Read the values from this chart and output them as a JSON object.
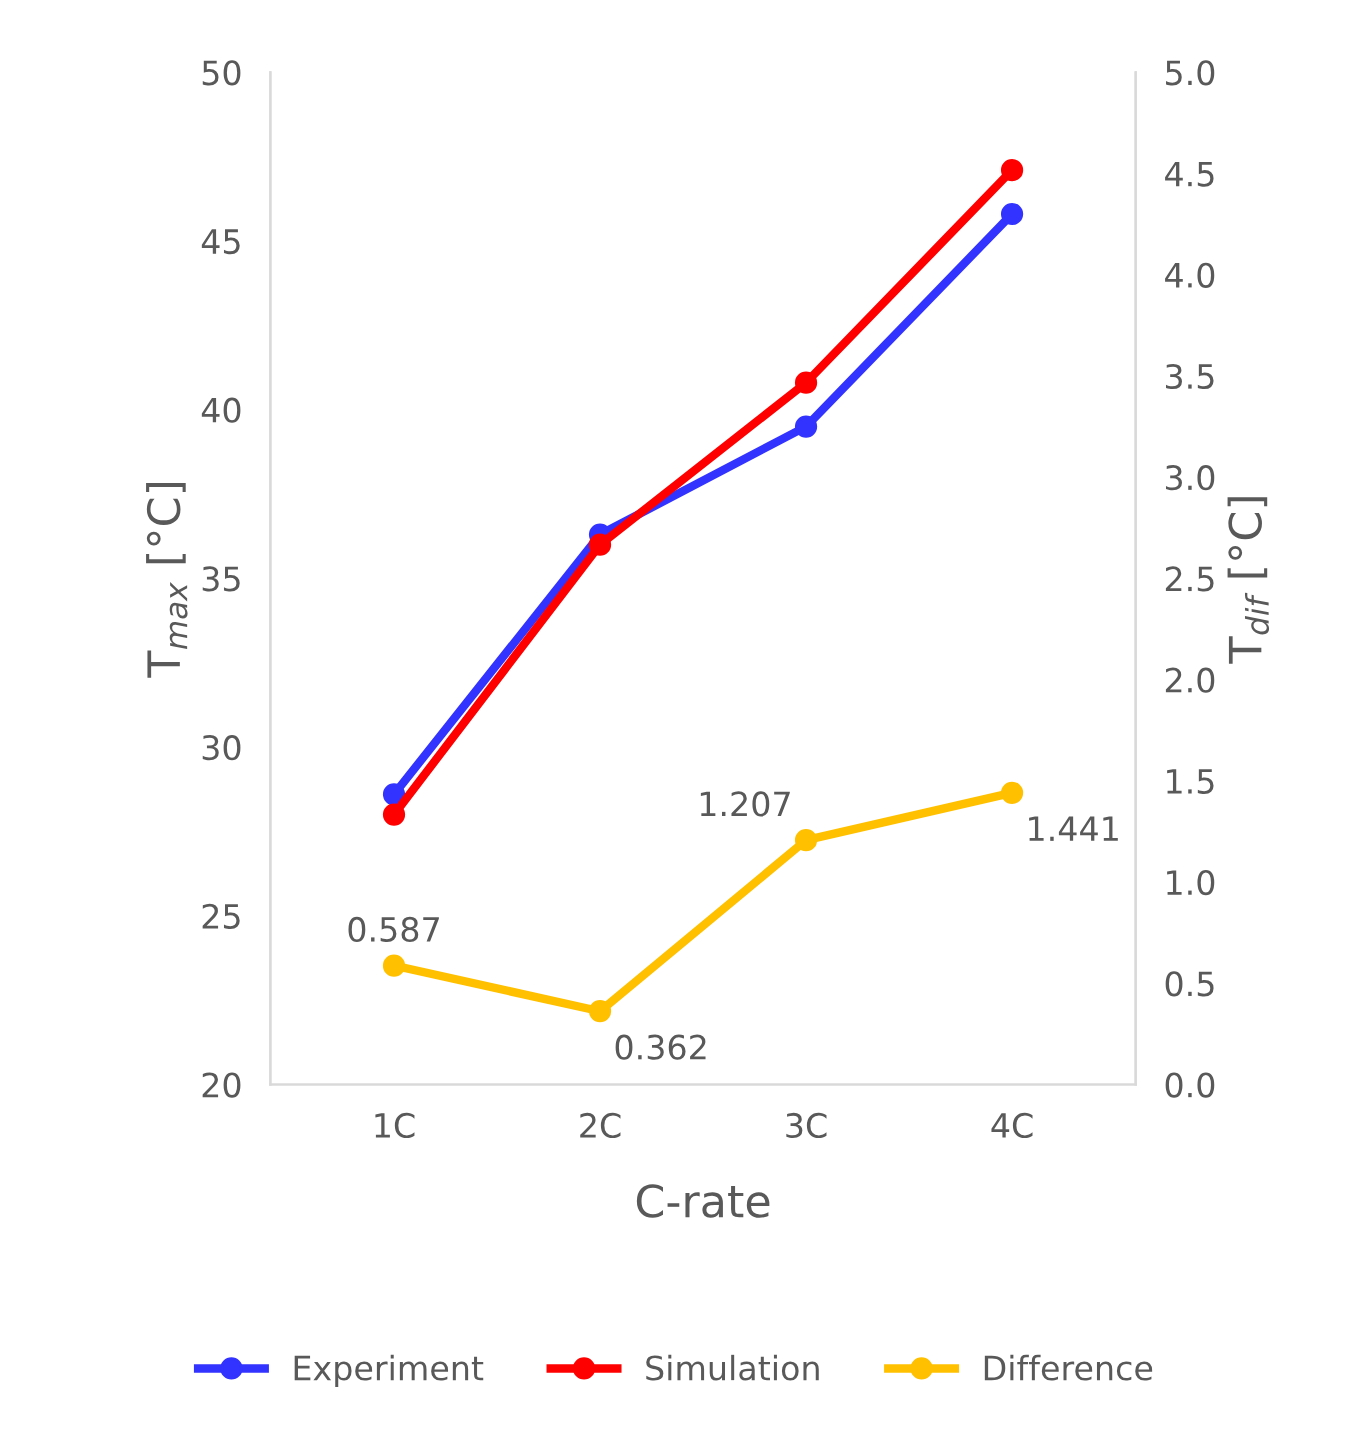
{
  "chart_data": {
    "type": "line",
    "xlabel": "C-rate",
    "ylabel": "T$_{max}$ [°C]",
    "y2label": "T$_{dif}$ [°C]",
    "categories": [
      "1C",
      "2C",
      "3C",
      "4C"
    ],
    "series": [
      {
        "name": "Experiment",
        "color": "#3333ff",
        "values": [
          28.6,
          36.3,
          39.5,
          45.8
        ]
      },
      {
        "name": "Simulation",
        "color": "#ff0000",
        "values": [
          28.0,
          36.0,
          40.8,
          47.1
        ]
      },
      {
        "name": "Difference",
        "color": "#ffc000",
        "axis": "y2",
        "values": [
          0.587,
          0.362,
          1.207,
          1.441
        ],
        "value_labels": [
          "0.587",
          "0.362",
          "1.207",
          "1.441"
        ]
      }
    ],
    "ylim": [
      20,
      50
    ],
    "yticks": [
      20,
      25,
      30,
      35,
      40,
      45,
      50
    ],
    "y2lim": [
      0,
      5
    ],
    "y2ticks": [
      {
        "value": 0,
        "label": "0.0"
      },
      {
        "value": 0.5,
        "label": "0.5"
      },
      {
        "value": 1,
        "label": "1.0"
      },
      {
        "value": 1.5,
        "label": "1.5"
      },
      {
        "value": 2,
        "label": "2.0"
      },
      {
        "value": 2.5,
        "label": "2.5"
      },
      {
        "value": 3,
        "label": "3.0"
      },
      {
        "value": 3.5,
        "label": "3.5"
      },
      {
        "value": 4,
        "label": "4.0"
      },
      {
        "value": 4.5,
        "label": "4.5"
      },
      {
        "value": 5,
        "label": "5.0"
      }
    ],
    "marker": "circle",
    "line_style": "solid",
    "grid": false,
    "legend": "bottom"
  }
}
